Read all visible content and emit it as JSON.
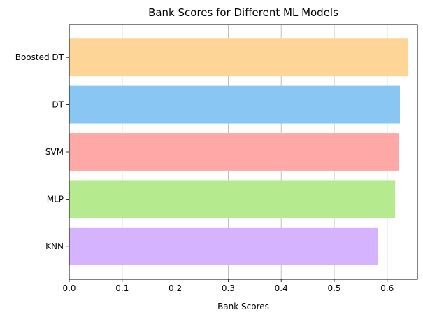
{
  "chart_data": {
    "type": "bar",
    "orientation": "horizontal",
    "title": "Bank Scores for Different ML Models",
    "xlabel": "Bank Scores",
    "ylabel": "",
    "categories": [
      "KNN",
      "MLP",
      "SVM",
      "DT",
      "Boosted DT"
    ],
    "values": [
      0.583,
      0.615,
      0.622,
      0.624,
      0.64
    ],
    "colors": [
      "#d5b3ff",
      "#b5ea8e",
      "#ffa8a8",
      "#8ac6f4",
      "#fdd597"
    ],
    "xlim": [
      0,
      0.657
    ],
    "xticks": [
      "0.0",
      "0.1",
      "0.2",
      "0.3",
      "0.4",
      "0.5",
      "0.6"
    ],
    "grid": "vertical lines at x ticks",
    "legend": "none"
  }
}
